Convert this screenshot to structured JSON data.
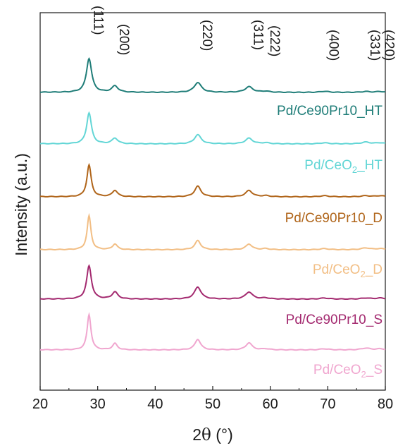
{
  "chart_data": {
    "type": "line",
    "xlabel_prefix": "2",
    "xlabel_theta": "θ",
    "xlabel_suffix": " (°)",
    "ylabel": "Intensity (a.u.)",
    "xlim": [
      20,
      80
    ],
    "xticks": [
      "20",
      "30",
      "40",
      "50",
      "60",
      "70",
      "80"
    ],
    "planes": [
      {
        "label": "(111)",
        "x": 28.5
      },
      {
        "label": "(200)",
        "x": 33.0
      },
      {
        "label": "(220)",
        "x": 47.4
      },
      {
        "label": "(311)",
        "x": 56.3
      },
      {
        "label": "(222)",
        "x": 59.2
      },
      {
        "label": "(400)",
        "x": 69.4
      },
      {
        "label": "(331)",
        "x": 76.6
      },
      {
        "label": "(420)",
        "x": 79.1
      }
    ],
    "series": [
      {
        "name_main": "Pd/Ce90Pr10_HT",
        "name_sub": "",
        "name_tail": "",
        "color": "#1f7d78",
        "peak_heights": [
          48,
          9,
          14,
          8,
          1.5,
          1.5,
          1.2,
          1.2
        ],
        "peak_widths": [
          0.55,
          0.65,
          0.75,
          0.8,
          0.8,
          0.9,
          0.9,
          0.9
        ]
      },
      {
        "name_main": "Pd/CeO",
        "name_sub": "2",
        "name_tail": "_HT",
        "color": "#63d6d6",
        "peak_heights": [
          44,
          8,
          13,
          8,
          1.5,
          1.5,
          2.5,
          1.5
        ],
        "peak_widths": [
          0.5,
          0.6,
          0.7,
          0.75,
          0.8,
          0.9,
          0.9,
          0.9
        ]
      },
      {
        "name_main": "Pd/Ce90Pr10_D",
        "name_sub": "",
        "name_tail": "",
        "color": "#b0651a",
        "peak_heights": [
          45,
          9,
          15,
          9,
          1.5,
          1.5,
          1.5,
          1.5
        ],
        "peak_widths": [
          0.45,
          0.55,
          0.65,
          0.7,
          0.8,
          0.9,
          0.9,
          0.9
        ]
      },
      {
        "name_main": "Pd/CeO",
        "name_sub": "2",
        "name_tail": "_D",
        "color": "#f2be84",
        "peak_heights": [
          48,
          8,
          13,
          8,
          1.5,
          1.5,
          2.5,
          1.5
        ],
        "peak_widths": [
          0.4,
          0.5,
          0.6,
          0.65,
          0.75,
          0.9,
          0.9,
          0.9
        ]
      },
      {
        "name_main": "Pd/Ce90Pr10_S",
        "name_sub": "",
        "name_tail": "",
        "color": "#a3296f",
        "peak_heights": [
          47,
          10,
          17,
          10,
          1.5,
          1.5,
          1.5,
          1.5
        ],
        "peak_widths": [
          0.5,
          0.6,
          0.7,
          0.75,
          0.8,
          0.9,
          0.9,
          0.9
        ]
      },
      {
        "name_main": "Pd/CeO",
        "name_sub": "2",
        "name_tail": "_S",
        "color": "#f0a6cf",
        "peak_heights": [
          50,
          9,
          15,
          10,
          1.5,
          1.5,
          2.5,
          1.5
        ],
        "peak_widths": [
          0.4,
          0.5,
          0.6,
          0.65,
          0.75,
          0.9,
          0.9,
          0.9
        ]
      }
    ],
    "grid": false,
    "legend": "labels beside each curve"
  }
}
